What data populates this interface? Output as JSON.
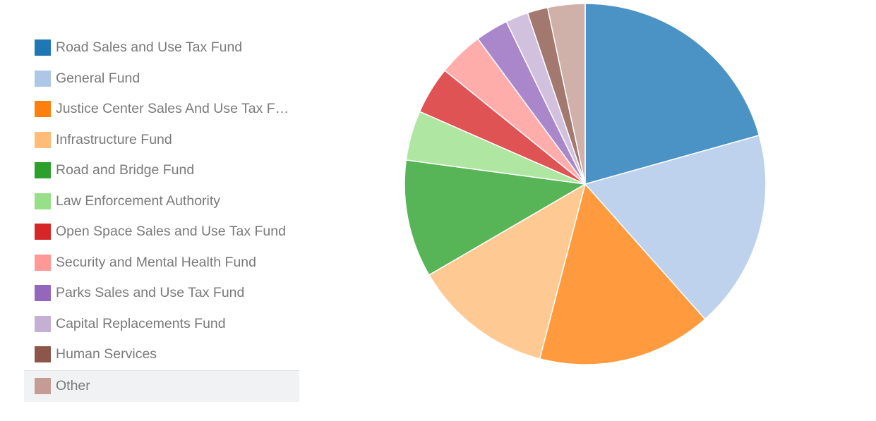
{
  "chart_data": {
    "type": "pie",
    "title": "",
    "legend_position": "left",
    "slices": [
      {
        "label": "Road Sales and Use Tax Fund",
        "value": 20.4,
        "legend_color": "#1f77b4",
        "slice_color": "#4b93c5"
      },
      {
        "label": "General Fund",
        "value": 17.6,
        "legend_color": "#aec7e8",
        "slice_color": "#bed2ee"
      },
      {
        "label": "Justice Center Sales And Use Tax Fund",
        "value": 15.4,
        "legend_color": "#ff7f0e",
        "slice_color": "#ff9b3e"
      },
      {
        "label": "Infrastructure Fund",
        "value": 12.4,
        "legend_color": "#ffbb78",
        "slice_color": "#ffc993"
      },
      {
        "label": "Road and Bridge Fund",
        "value": 10.4,
        "legend_color": "#2ca02c",
        "slice_color": "#57b557"
      },
      {
        "label": "Law Enforcement Authority",
        "value": 4.4,
        "legend_color": "#98df8a",
        "slice_color": "#afe6a2"
      },
      {
        "label": "Open Space Sales and Use Tax Fund",
        "value": 4.2,
        "legend_color": "#d62728",
        "slice_color": "#e05354"
      },
      {
        "label": "Security and Mental Health Fund",
        "value": 4.0,
        "legend_color": "#ff9896",
        "slice_color": "#ffadab"
      },
      {
        "label": "Parks Sales and Use Tax Fund",
        "value": 2.9,
        "legend_color": "#9467bd",
        "slice_color": "#a987ca"
      },
      {
        "label": "Capital Replacements Fund",
        "value": 2.0,
        "legend_color": "#c5b0d5",
        "slice_color": "#d2c1de"
      },
      {
        "label": "Human Services",
        "value": 1.8,
        "legend_color": "#8c564b",
        "slice_color": "#a3786f"
      },
      {
        "label": "Other",
        "value": 3.3,
        "legend_color": "#c49c94",
        "slice_color": "#cfb1aa",
        "selected": true
      }
    ]
  }
}
